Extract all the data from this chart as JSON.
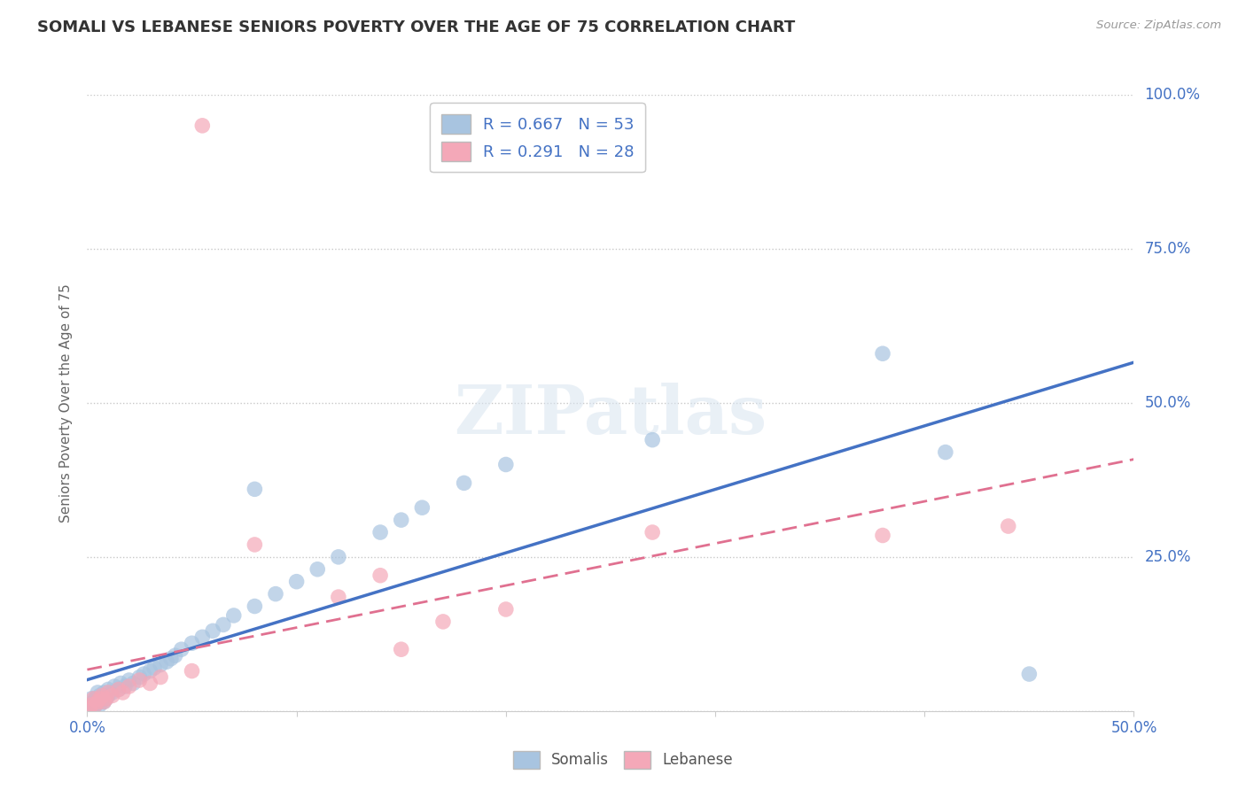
{
  "title": "SOMALI VS LEBANESE SENIORS POVERTY OVER THE AGE OF 75 CORRELATION CHART",
  "source": "Source: ZipAtlas.com",
  "ylabel": "Seniors Poverty Over the Age of 75",
  "xlim": [
    0.0,
    0.5
  ],
  "ylim": [
    0.0,
    1.0
  ],
  "ytick_positions": [
    0.0,
    0.25,
    0.5,
    0.75,
    1.0
  ],
  "ytick_labels": [
    "",
    "25.0%",
    "50.0%",
    "75.0%",
    "100.0%"
  ],
  "xtick_positions": [
    0.0,
    0.1,
    0.2,
    0.3,
    0.4,
    0.5
  ],
  "xtick_labels": [
    "0.0%",
    "",
    "",
    "",
    "",
    "50.0%"
  ],
  "grid_color": "#c8c8c8",
  "background_color": "#ffffff",
  "somali_color": "#a8c4e0",
  "lebanese_color": "#f4a8b8",
  "somali_line_color": "#4472c4",
  "lebanese_line_color": "#e07090",
  "R_somali": 0.667,
  "N_somali": 53,
  "R_lebanese": 0.291,
  "N_lebanese": 28,
  "title_color": "#333333",
  "axis_label_color": "#4472c4",
  "watermark": "ZIPatlas",
  "somali_points": [
    [
      0.001,
      0.005
    ],
    [
      0.002,
      0.01
    ],
    [
      0.002,
      0.02
    ],
    [
      0.003,
      0.005
    ],
    [
      0.003,
      0.015
    ],
    [
      0.004,
      0.01
    ],
    [
      0.004,
      0.02
    ],
    [
      0.005,
      0.015
    ],
    [
      0.005,
      0.03
    ],
    [
      0.006,
      0.01
    ],
    [
      0.006,
      0.025
    ],
    [
      0.007,
      0.02
    ],
    [
      0.008,
      0.015
    ],
    [
      0.008,
      0.03
    ],
    [
      0.009,
      0.02
    ],
    [
      0.01,
      0.025
    ],
    [
      0.01,
      0.035
    ],
    [
      0.012,
      0.03
    ],
    [
      0.013,
      0.04
    ],
    [
      0.015,
      0.035
    ],
    [
      0.016,
      0.045
    ],
    [
      0.018,
      0.04
    ],
    [
      0.02,
      0.05
    ],
    [
      0.022,
      0.045
    ],
    [
      0.025,
      0.055
    ],
    [
      0.027,
      0.06
    ],
    [
      0.03,
      0.065
    ],
    [
      0.032,
      0.07
    ],
    [
      0.035,
      0.075
    ],
    [
      0.038,
      0.08
    ],
    [
      0.04,
      0.085
    ],
    [
      0.042,
      0.09
    ],
    [
      0.045,
      0.1
    ],
    [
      0.05,
      0.11
    ],
    [
      0.055,
      0.12
    ],
    [
      0.06,
      0.13
    ],
    [
      0.065,
      0.14
    ],
    [
      0.07,
      0.155
    ],
    [
      0.08,
      0.17
    ],
    [
      0.09,
      0.19
    ],
    [
      0.1,
      0.21
    ],
    [
      0.11,
      0.23
    ],
    [
      0.12,
      0.25
    ],
    [
      0.14,
      0.29
    ],
    [
      0.16,
      0.33
    ],
    [
      0.18,
      0.37
    ],
    [
      0.2,
      0.4
    ],
    [
      0.08,
      0.36
    ],
    [
      0.15,
      0.31
    ],
    [
      0.27,
      0.44
    ],
    [
      0.38,
      0.58
    ],
    [
      0.41,
      0.42
    ],
    [
      0.45,
      0.06
    ]
  ],
  "lebanese_points": [
    [
      0.001,
      0.005
    ],
    [
      0.002,
      0.01
    ],
    [
      0.003,
      0.02
    ],
    [
      0.004,
      0.01
    ],
    [
      0.005,
      0.015
    ],
    [
      0.006,
      0.02
    ],
    [
      0.007,
      0.025
    ],
    [
      0.008,
      0.015
    ],
    [
      0.009,
      0.02
    ],
    [
      0.01,
      0.03
    ],
    [
      0.012,
      0.025
    ],
    [
      0.015,
      0.035
    ],
    [
      0.017,
      0.03
    ],
    [
      0.02,
      0.04
    ],
    [
      0.025,
      0.05
    ],
    [
      0.03,
      0.045
    ],
    [
      0.035,
      0.055
    ],
    [
      0.05,
      0.065
    ],
    [
      0.055,
      0.95
    ],
    [
      0.08,
      0.27
    ],
    [
      0.12,
      0.185
    ],
    [
      0.14,
      0.22
    ],
    [
      0.15,
      0.1
    ],
    [
      0.17,
      0.145
    ],
    [
      0.2,
      0.165
    ],
    [
      0.27,
      0.29
    ],
    [
      0.38,
      0.285
    ],
    [
      0.44,
      0.3
    ]
  ]
}
